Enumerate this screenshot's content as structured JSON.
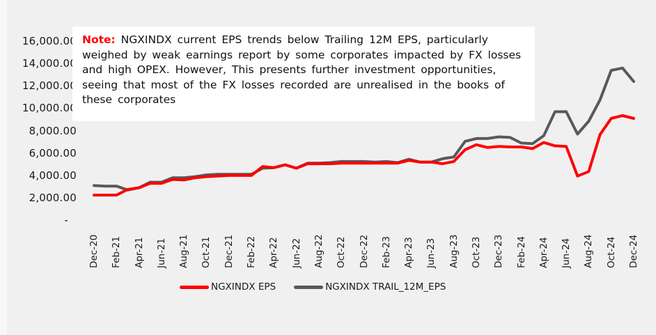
{
  "note": {
    "label": "Note:",
    "text": " NGXINDX current EPS trends below Trailing 12M EPS, particularly weighed by weak earnings report by some corporates impacted by FX losses and high OPEX. However, This presents further investment opportunities, seeing that most of the FX losses recorded are unrealised in the books of these corporates"
  },
  "colors": {
    "eps": "#ff0000",
    "trail": "#595959",
    "background": "#f0f0f0"
  },
  "chart_data": {
    "type": "line",
    "title": "",
    "xlabel": "",
    "ylabel": "",
    "ylim": [
      0,
      16000
    ],
    "y_ticks": [
      "16,000.00",
      "14,000.00",
      "12,000.00",
      "10,000.00",
      "8,000.00",
      "6,000.00",
      "4,000.00",
      "2,000.00",
      "-"
    ],
    "x_tick_labels": [
      "Dec-20",
      "Feb-21",
      "Apr-21",
      "Jun-21",
      "Aug-21",
      "Oct-21",
      "Dec-21",
      "Feb-22",
      "Apr-22",
      "Jun-22",
      "Aug-22",
      "Oct-22",
      "Dec-22",
      "Feb-23",
      "Apr-23",
      "Jun-23",
      "Aug-23",
      "Oct-23",
      "Dec-23",
      "Feb-24",
      "Apr-24",
      "Jun-24",
      "Aug-24",
      "Oct-24",
      "Dec-24"
    ],
    "x": [
      "Dec-20",
      "Jan-21",
      "Feb-21",
      "Mar-21",
      "Apr-21",
      "May-21",
      "Jun-21",
      "Jul-21",
      "Aug-21",
      "Sep-21",
      "Oct-21",
      "Nov-21",
      "Dec-21",
      "Jan-22",
      "Feb-22",
      "Mar-22",
      "Apr-22",
      "May-22",
      "Jun-22",
      "Jul-22",
      "Aug-22",
      "Sep-22",
      "Oct-22",
      "Nov-22",
      "Dec-22",
      "Jan-23",
      "Feb-23",
      "Mar-23",
      "Apr-23",
      "May-23",
      "Jun-23",
      "Jul-23",
      "Aug-23",
      "Sep-23",
      "Oct-23",
      "Nov-23",
      "Dec-23",
      "Jan-24",
      "Feb-24",
      "Mar-24",
      "Apr-24",
      "May-24",
      "Jun-24",
      "Jul-24",
      "Aug-24",
      "Sep-24",
      "Oct-24",
      "Nov-24",
      "Dec-24"
    ],
    "grid": false,
    "legend_position": "bottom",
    "series": [
      {
        "name": "NGXINDX EPS",
        "color": "#ff0000",
        "values": [
          2300,
          2300,
          2300,
          2800,
          2950,
          3350,
          3350,
          3700,
          3650,
          3850,
          3950,
          4000,
          4050,
          4050,
          4050,
          4850,
          4750,
          5000,
          4700,
          5100,
          5100,
          5100,
          5150,
          5150,
          5150,
          5150,
          5150,
          5150,
          5400,
          5250,
          5250,
          5100,
          5300,
          6350,
          6800,
          6550,
          6650,
          6600,
          6600,
          6450,
          7000,
          6700,
          6650,
          4000,
          4400,
          7700,
          9150,
          9400,
          9150
        ]
      },
      {
        "name": "NGXINDX TRAIL_12M_EPS",
        "color": "#595959",
        "values": [
          3150,
          3100,
          3100,
          2750,
          2950,
          3450,
          3450,
          3850,
          3850,
          3950,
          4100,
          4150,
          4150,
          4150,
          4150,
          4700,
          4750,
          5000,
          4700,
          5150,
          5150,
          5200,
          5300,
          5300,
          5300,
          5250,
          5300,
          5200,
          5500,
          5250,
          5250,
          5550,
          5700,
          7100,
          7350,
          7350,
          7500,
          7450,
          6950,
          6900,
          7600,
          9750,
          9750,
          7750,
          8900,
          10800,
          13450,
          13650,
          12450
        ]
      }
    ]
  }
}
